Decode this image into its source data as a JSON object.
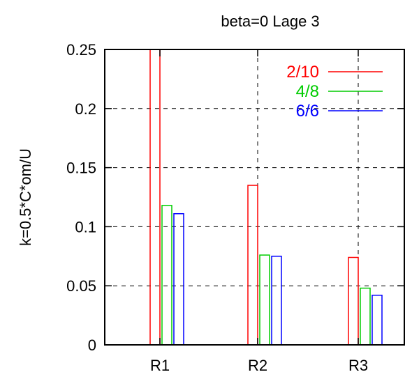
{
  "chart_data": {
    "type": "bar",
    "title": "beta=0 Lage 3",
    "xlabel": "",
    "ylabel": "k=0.5*C*om/U",
    "categories": [
      "R1",
      "R2",
      "R3"
    ],
    "ylim": [
      0,
      0.25
    ],
    "yticks": [
      "0",
      "0.05",
      "0.1",
      "0.15",
      "0.2",
      "0.25"
    ],
    "grid": true,
    "legend_position": "top-right",
    "series": [
      {
        "name": "2/10",
        "color": "#ff0000",
        "values": [
          0.25,
          0.135,
          0.074
        ]
      },
      {
        "name": "4/8",
        "color": "#00cc00",
        "values": [
          0.118,
          0.076,
          0.048
        ]
      },
      {
        "name": "6/6",
        "color": "#0000ff",
        "values": [
          0.111,
          0.075,
          0.042
        ]
      }
    ]
  }
}
